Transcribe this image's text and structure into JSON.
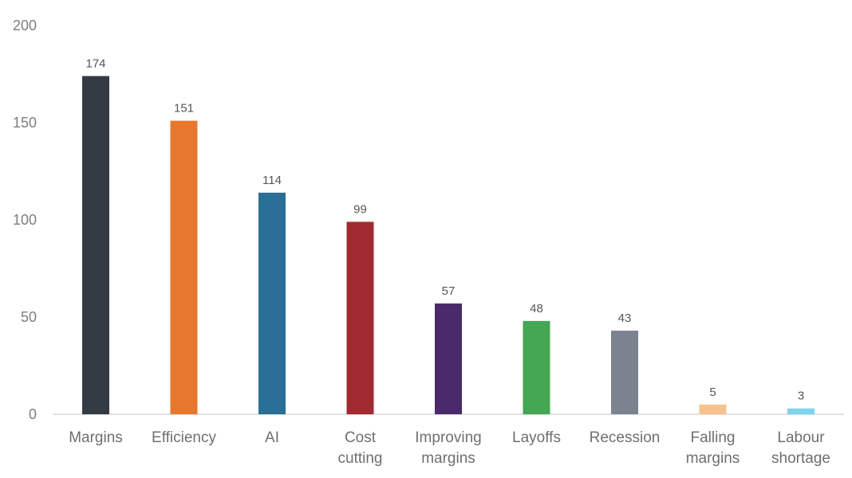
{
  "chart_data": {
    "type": "bar",
    "title": "",
    "xlabel": "",
    "ylabel": "",
    "categories": [
      [
        "Margins"
      ],
      [
        "Efficiency"
      ],
      [
        "AI"
      ],
      [
        "Cost",
        "cutting"
      ],
      [
        "Improving",
        "margins"
      ],
      [
        "Layoffs"
      ],
      [
        "Recession"
      ],
      [
        "Falling",
        "margins"
      ],
      [
        "Labour",
        "shortage"
      ]
    ],
    "values": [
      174,
      151,
      114,
      99,
      57,
      48,
      43,
      5,
      3
    ],
    "colors": [
      "#353b45",
      "#e8772e",
      "#2a6f96",
      "#a12a30",
      "#4a2a6b",
      "#45a653",
      "#7b8290",
      "#f6c28f",
      "#7fd3ec"
    ],
    "ylim": [
      0,
      200
    ],
    "yticks": [
      0,
      50,
      100,
      150,
      200
    ],
    "grid": false,
    "legend": "none"
  }
}
